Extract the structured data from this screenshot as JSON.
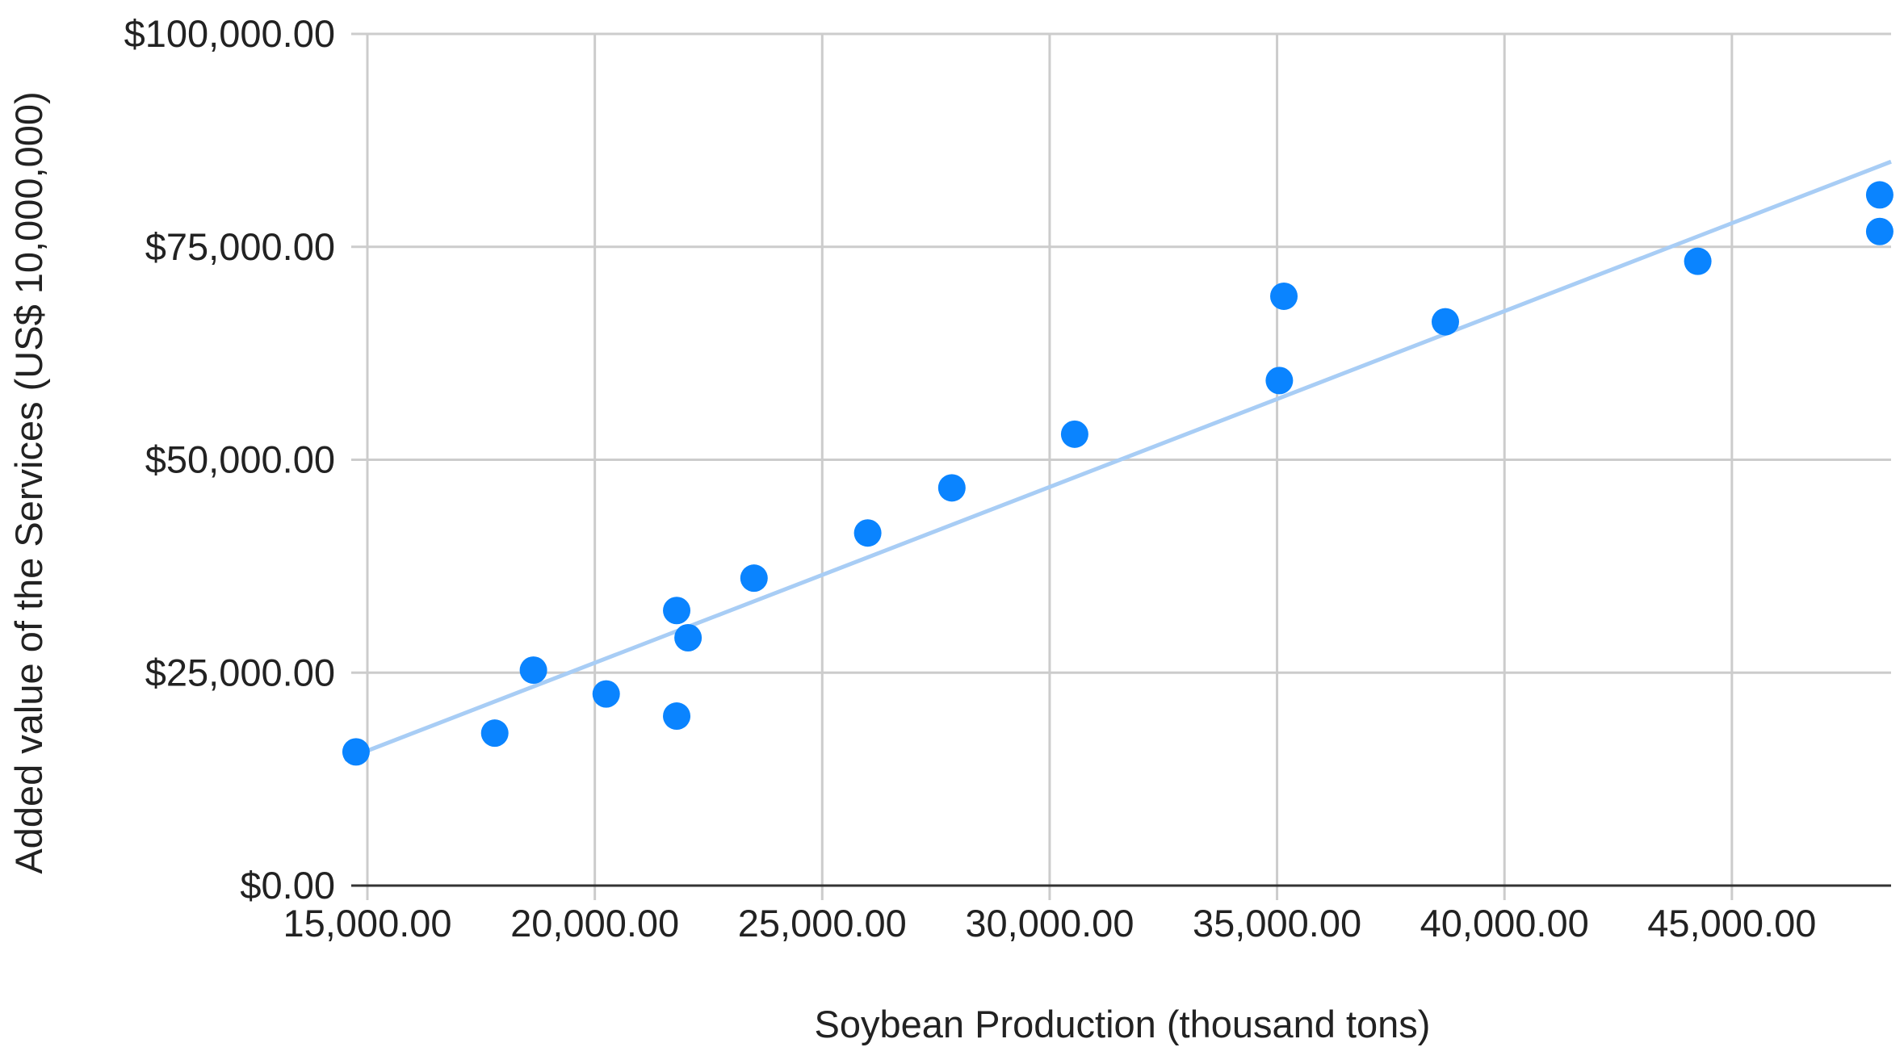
{
  "chart_data": {
    "type": "scatter",
    "title": "",
    "xlabel": "Soybean Production (thousand tons)",
    "ylabel": "Added value of the Services (US$ 10,000,000)",
    "xlim": [
      15000,
      48500
    ],
    "ylim": [
      0,
      100000
    ],
    "grid": true,
    "legend": "none",
    "x_ticks": [
      15000,
      20000,
      25000,
      30000,
      35000,
      40000,
      45000
    ],
    "x_tick_labels": [
      "15,000.00",
      "20,000.00",
      "25,000.00",
      "30,000.00",
      "35,000.00",
      "40,000.00",
      "45,000.00"
    ],
    "y_ticks": [
      0,
      25000,
      50000,
      75000,
      100000
    ],
    "y_tick_labels": [
      "$0.00",
      "$25,000.00",
      "$50,000.00",
      "$75,000.00",
      "$100,000.00"
    ],
    "colors": {
      "points": "#0a84ff",
      "trendline": "#a8cdf5",
      "grid": "#cccccc",
      "axis": "#333333"
    },
    "series": [
      {
        "points": [
          {
            "x": 14750,
            "y": 15700
          },
          {
            "x": 17800,
            "y": 17900
          },
          {
            "x": 18650,
            "y": 25300
          },
          {
            "x": 20250,
            "y": 22500
          },
          {
            "x": 21800,
            "y": 32300
          },
          {
            "x": 22050,
            "y": 29100
          },
          {
            "x": 21800,
            "y": 19900
          },
          {
            "x": 23500,
            "y": 36100
          },
          {
            "x": 26000,
            "y": 41400
          },
          {
            "x": 27850,
            "y": 46700
          },
          {
            "x": 30550,
            "y": 53000
          },
          {
            "x": 35050,
            "y": 59300
          },
          {
            "x": 35150,
            "y": 69200
          },
          {
            "x": 38700,
            "y": 66200
          },
          {
            "x": 44250,
            "y": 73300
          },
          {
            "x": 48250,
            "y": 81100
          },
          {
            "x": 48250,
            "y": 76800
          }
        ]
      }
    ],
    "trendline": {
      "type": "linear",
      "start": {
        "x": 14500,
        "y": 14800
      },
      "end": {
        "x": 48500,
        "y": 85000
      }
    }
  }
}
